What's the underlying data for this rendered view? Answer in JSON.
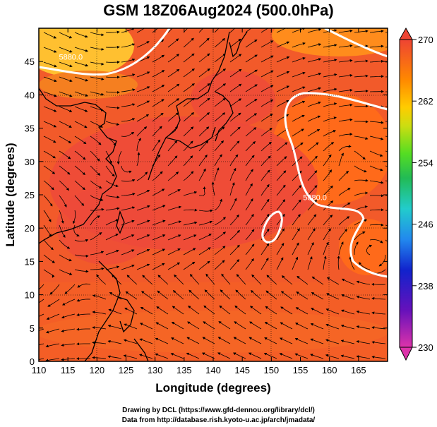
{
  "title": "GSM 18Z06Aug2024 (500.0hPa)",
  "x_axis": {
    "label": "Longitude (degrees)",
    "ticks": [
      "110",
      "115",
      "120",
      "125",
      "130",
      "135",
      "140",
      "145",
      "150",
      "155",
      "160",
      "165"
    ],
    "range": [
      110,
      170
    ]
  },
  "y_axis": {
    "label": "Latitude (degrees)",
    "ticks": [
      "0",
      "5",
      "10",
      "15",
      "20",
      "25",
      "30",
      "35",
      "40",
      "45"
    ],
    "range": [
      0,
      50
    ]
  },
  "colorbar": {
    "ticks": [
      "230",
      "238",
      "246",
      "254",
      "262",
      "270"
    ],
    "range": [
      230,
      270
    ],
    "colors": [
      "#cc33aa",
      "#5511bb",
      "#2233dd",
      "#2299ee",
      "#22cccc",
      "#33cc66",
      "#55dd22",
      "#bbdd11",
      "#ffcc00",
      "#ff9900",
      "#ff6600",
      "#ee4433"
    ]
  },
  "contour_labels": [
    {
      "text": "5880.0",
      "lon": 115.5,
      "lat": 45.3
    },
    {
      "text": "5880.0",
      "lon": 157.5,
      "lat": 24.2
    }
  ],
  "credits": [
    "Drawing by DCL (https://www.gfd-dennou.org/library/dcl/)",
    "Data from http://database.rish.kyoto-u.ac.jp/arch/jmadata/"
  ]
}
